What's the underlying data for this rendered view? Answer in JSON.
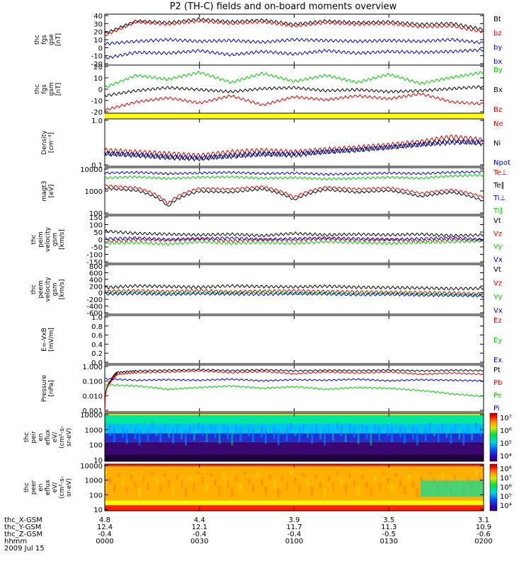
{
  "title": "P2 (TH-C) fields and on-board moments overview",
  "colors": {
    "black": "#000000",
    "red": "#e00000",
    "blue": "#0000d0",
    "green": "#00d000",
    "yellow": "#ffff00"
  },
  "colorbars": {
    "peir": {
      "labels": [
        "10⁷",
        "10⁶",
        "10⁵",
        "10⁴"
      ]
    },
    "peer": {
      "labels": [
        "10⁸",
        "10⁷",
        "10⁶",
        "10⁵",
        "10⁴"
      ]
    }
  },
  "ephemeris": {
    "rows": [
      {
        "label": "thc_X-GSM",
        "values": [
          "4.8",
          "4.4",
          "3.9",
          "3.5",
          "3.1"
        ]
      },
      {
        "label": "thc_Y-GSM",
        "values": [
          "12.4",
          "12.1",
          "11.7",
          "11.3",
          "10.9"
        ]
      },
      {
        "label": "thc_Z-GSM",
        "values": [
          "-0.4",
          "-0.4",
          "-0.4",
          "-0.5",
          "-0.6"
        ]
      },
      {
        "label": "hhmm",
        "values": [
          "0000",
          "0030",
          "0100",
          "0130",
          "0200"
        ]
      }
    ],
    "date": "2009 Jul 15"
  },
  "chart_data": [
    {
      "type": "line",
      "id": "fgs_gse",
      "ylabel_lines": [
        "thc",
        "fgs",
        "gse",
        "[nT]"
      ],
      "ylim": [
        -20,
        40
      ],
      "yticks": [
        "40",
        "30",
        "20",
        "10",
        "0",
        "-10",
        "-20"
      ],
      "series": [
        {
          "name": "Bt",
          "color": "black",
          "x": [
            0,
            10,
            20,
            30,
            40,
            50,
            60,
            70,
            80,
            90,
            100,
            110,
            120
          ],
          "y": [
            17,
            32,
            30,
            34,
            31,
            33,
            28,
            32,
            30,
            31,
            28,
            29,
            22
          ]
        },
        {
          "name": "bz",
          "color": "red",
          "x": [
            0,
            10,
            20,
            30,
            40,
            50,
            60,
            70,
            80,
            90,
            100,
            110,
            120
          ],
          "y": [
            15,
            31,
            28,
            32,
            29,
            31,
            26,
            30,
            28,
            29,
            25,
            26,
            19
          ]
        },
        {
          "name": "by",
          "color": "blue",
          "x": [
            0,
            10,
            20,
            30,
            40,
            50,
            60,
            70,
            80,
            90,
            100,
            110,
            120
          ],
          "y": [
            5,
            8,
            10,
            8,
            9,
            7,
            10,
            9,
            8,
            9,
            8,
            10,
            6
          ]
        },
        {
          "name": "bx",
          "color": "blue",
          "x": [
            0,
            10,
            20,
            30,
            40,
            50,
            60,
            70,
            80,
            90,
            100,
            110,
            120
          ],
          "y": [
            -12,
            -5,
            -6,
            -3,
            -8,
            -4,
            -7,
            -3,
            -6,
            -4,
            -5,
            -4,
            -2
          ]
        }
      ]
    },
    {
      "type": "line",
      "id": "fgs_gsm",
      "ylabel_lines": [
        "thc",
        "fgs",
        "gsm",
        "[nT]"
      ],
      "ylim": [
        -25,
        22
      ],
      "yticks": [
        "20",
        "10",
        "0",
        "-10",
        "-20"
      ],
      "series": [
        {
          "name": "By",
          "color": "green",
          "x": [
            0,
            10,
            20,
            30,
            40,
            50,
            60,
            70,
            80,
            90,
            100,
            110,
            120
          ],
          "y": [
            0,
            12,
            8,
            15,
            5,
            14,
            6,
            12,
            5,
            13,
            4,
            10,
            15
          ]
        },
        {
          "name": "Bx",
          "color": "black",
          "x": [
            0,
            10,
            20,
            30,
            40,
            50,
            60,
            70,
            80,
            90,
            100,
            110,
            120
          ],
          "y": [
            -8,
            -3,
            0,
            -2,
            -4,
            -1,
            0,
            -3,
            -2,
            -4,
            -3,
            -1,
            1
          ]
        },
        {
          "name": "Bz",
          "color": "red",
          "x": [
            0,
            10,
            20,
            30,
            40,
            50,
            60,
            70,
            80,
            90,
            100,
            110,
            120
          ],
          "y": [
            -22,
            -14,
            -10,
            -15,
            -8,
            -17,
            -9,
            -12,
            -8,
            -11,
            -6,
            -14,
            -16
          ]
        }
      ]
    },
    {
      "type": "line",
      "id": "density",
      "scale": "log",
      "ylabel_lines": [
        "Density",
        "[cm⁻³]"
      ],
      "ylim": [
        0.1,
        1.3
      ],
      "yticks": [
        "1.0",
        "0.1"
      ],
      "series": [
        {
          "name": "Ne",
          "color": "red",
          "x": [
            0,
            10,
            20,
            30,
            40,
            50,
            60,
            70,
            80,
            90,
            100,
            110,
            120
          ],
          "y": [
            0.24,
            0.22,
            0.2,
            0.18,
            0.22,
            0.24,
            0.22,
            0.25,
            0.28,
            0.32,
            0.38,
            0.5,
            0.42
          ]
        },
        {
          "name": "Ni",
          "color": "black",
          "x": [
            0,
            10,
            20,
            30,
            40,
            50,
            60,
            70,
            80,
            90,
            100,
            110,
            120
          ],
          "y": [
            0.2,
            0.18,
            0.16,
            0.15,
            0.18,
            0.2,
            0.18,
            0.22,
            0.24,
            0.28,
            0.33,
            0.4,
            0.34
          ]
        },
        {
          "name": "Npot",
          "color": "blue",
          "x": [
            0,
            10,
            20,
            30,
            40,
            50,
            60,
            70,
            80,
            90,
            100,
            110,
            120
          ],
          "y": [
            0.2,
            0.19,
            0.17,
            0.16,
            0.17,
            0.19,
            0.2,
            0.22,
            0.25,
            0.28,
            0.32,
            0.36,
            0.38
          ]
        }
      ]
    },
    {
      "type": "line",
      "id": "temperature",
      "scale": "log",
      "ylabel_lines": [
        "magt3",
        "[eV]"
      ],
      "ylim": [
        100,
        13000
      ],
      "yticks": [
        "10000",
        "1000",
        "100"
      ],
      "series": [
        {
          "name": "Te⊥",
          "color": "red",
          "x": [
            0,
            10,
            20,
            30,
            40,
            50,
            60,
            70,
            80,
            90,
            100,
            110,
            120
          ],
          "y": [
            2000,
            1600,
            300,
            1500,
            1400,
            1800,
            600,
            1700,
            1400,
            1600,
            900,
            1300,
            600
          ]
        },
        {
          "name": "Te∥",
          "color": "black",
          "x": [
            0,
            10,
            20,
            30,
            40,
            50,
            60,
            70,
            80,
            90,
            100,
            110,
            120
          ],
          "y": [
            1500,
            1200,
            220,
            1100,
            1000,
            1400,
            450,
            1300,
            1000,
            1200,
            650,
            1000,
            400
          ]
        },
        {
          "name": "Ti⊥",
          "color": "blue",
          "x": [
            0,
            10,
            20,
            30,
            40,
            50,
            60,
            70,
            80,
            90,
            100,
            110,
            120
          ],
          "y": [
            7500,
            8000,
            7000,
            7500,
            8000,
            7000,
            7500,
            6500,
            7000,
            7500,
            7000,
            8000,
            8500
          ]
        },
        {
          "name": "Ti∥",
          "color": "green",
          "x": [
            0,
            10,
            20,
            30,
            40,
            50,
            60,
            70,
            80,
            90,
            100,
            110,
            120
          ],
          "y": [
            4500,
            5000,
            4200,
            4800,
            5000,
            4300,
            4600,
            4000,
            4300,
            4800,
            4300,
            5500,
            6000
          ]
        }
      ]
    },
    {
      "type": "line",
      "id": "peim_velocity",
      "ylabel_lines": [
        "thc",
        "peim",
        "velocity",
        "gsm",
        "[km/s]"
      ],
      "ylim": [
        -150,
        160
      ],
      "yticks": [
        "150",
        "100",
        "50",
        "0",
        "-50",
        "-100",
        "-150"
      ],
      "series": [
        {
          "name": "Vt",
          "color": "black",
          "x": [
            0,
            10,
            20,
            30,
            40,
            50,
            60,
            70,
            80,
            90,
            100,
            110,
            120
          ],
          "y": [
            60,
            45,
            40,
            35,
            40,
            30,
            45,
            35,
            40,
            35,
            40,
            30,
            35
          ]
        },
        {
          "name": "Vz",
          "color": "red",
          "x": [
            0,
            10,
            20,
            30,
            40,
            50,
            60,
            70,
            80,
            90,
            100,
            110,
            120
          ],
          "y": [
            -10,
            5,
            0,
            10,
            -5,
            5,
            0,
            10,
            0,
            5,
            -5,
            5,
            0
          ]
        },
        {
          "name": "Vy",
          "color": "green",
          "x": [
            0,
            10,
            20,
            30,
            40,
            50,
            60,
            70,
            80,
            90,
            100,
            110,
            120
          ],
          "y": [
            -20,
            -15,
            -25,
            -10,
            -20,
            -15,
            -20,
            -10,
            -15,
            -20,
            -15,
            -10,
            -5
          ]
        },
        {
          "name": "Vx",
          "color": "blue",
          "x": [
            0,
            10,
            20,
            30,
            40,
            50,
            60,
            70,
            80,
            90,
            100,
            110,
            120
          ],
          "y": [
            10,
            15,
            5,
            10,
            15,
            5,
            10,
            15,
            10,
            5,
            10,
            15,
            5
          ]
        }
      ]
    },
    {
      "type": "line",
      "id": "peem_velocity",
      "ylabel_lines": [
        "thc",
        "peem",
        "velocity",
        "gsm",
        "[km/s]"
      ],
      "ylim": [
        -600,
        800
      ],
      "yticks": [
        "800",
        "600",
        "400",
        "200",
        "0",
        "-200",
        "-400",
        "-600"
      ],
      "series": [
        {
          "name": "Vt",
          "color": "black",
          "x": [
            0,
            10,
            20,
            30,
            40,
            50,
            60,
            70,
            80,
            90,
            100,
            110,
            120
          ],
          "y": [
            150,
            200,
            180,
            160,
            200,
            180,
            170,
            190,
            160,
            150,
            140,
            120,
            130
          ]
        },
        {
          "name": "Vz",
          "color": "red",
          "x": [
            0,
            10,
            20,
            30,
            40,
            50,
            60,
            70,
            80,
            90,
            100,
            110,
            120
          ],
          "y": [
            50,
            60,
            40,
            70,
            30,
            50,
            60,
            40,
            30,
            20,
            10,
            0,
            -30
          ]
        },
        {
          "name": "Vy",
          "color": "green",
          "x": [
            0,
            10,
            20,
            30,
            40,
            50,
            60,
            70,
            80,
            90,
            100,
            110,
            120
          ],
          "y": [
            0,
            20,
            -10,
            10,
            0,
            20,
            -10,
            0,
            -20,
            -10,
            -30,
            -40,
            -60
          ]
        },
        {
          "name": "Vx",
          "color": "blue",
          "x": [
            0,
            10,
            20,
            30,
            40,
            50,
            60,
            70,
            80,
            90,
            100,
            110,
            120
          ],
          "y": [
            -30,
            -20,
            -40,
            -20,
            -30,
            -40,
            -20,
            -30,
            -50,
            -40,
            -60,
            -70,
            -80
          ]
        }
      ]
    },
    {
      "type": "line",
      "id": "efield",
      "ylabel_lines": [
        "E=-VxB",
        "[mV/m]"
      ],
      "ylim": [
        0,
        1
      ],
      "yticks": [
        "1.0",
        "0.8",
        "0.6",
        "0.4",
        "0.2",
        "0.0"
      ],
      "series": [
        {
          "name": "Ez",
          "color": "red",
          "x": [],
          "y": []
        },
        {
          "name": "Ey",
          "color": "green",
          "x": [],
          "y": []
        },
        {
          "name": "Ex",
          "color": "blue",
          "x": [],
          "y": []
        }
      ]
    },
    {
      "type": "line",
      "id": "pressure",
      "scale": "log",
      "ylabel_lines": [
        "Pressure",
        "[nPa]"
      ],
      "ylim": [
        0.001,
        1.2
      ],
      "yticks": [
        "1.000",
        "0.100",
        "0.010",
        "0.001"
      ],
      "series": [
        {
          "name": "Pt",
          "color": "black",
          "x": [
            0,
            2,
            4,
            10,
            20,
            30,
            40,
            50,
            60,
            70,
            80,
            90,
            100,
            110,
            120
          ],
          "y": [
            0.001,
            0.12,
            0.4,
            0.5,
            0.55,
            0.6,
            0.52,
            0.58,
            0.5,
            0.55,
            0.52,
            0.56,
            0.5,
            0.54,
            0.52
          ]
        },
        {
          "name": "Pb",
          "color": "red",
          "x": [
            0,
            2,
            4,
            10,
            20,
            30,
            40,
            50,
            60,
            70,
            80,
            90,
            100,
            110,
            120
          ],
          "y": [
            0.001,
            0.1,
            0.3,
            0.38,
            0.42,
            0.5,
            0.38,
            0.45,
            0.32,
            0.42,
            0.36,
            0.42,
            0.3,
            0.36,
            0.3
          ]
        },
        {
          "name": "Pe",
          "color": "green",
          "x": [
            0,
            10,
            20,
            30,
            40,
            50,
            60,
            70,
            80,
            90,
            100,
            110,
            120
          ],
          "y": [
            0.06,
            0.05,
            0.03,
            0.04,
            0.05,
            0.035,
            0.045,
            0.03,
            0.04,
            0.035,
            0.025,
            0.015,
            0.01
          ]
        },
        {
          "name": "Pi",
          "color": "blue",
          "x": [
            0,
            10,
            20,
            30,
            40,
            50,
            60,
            70,
            80,
            90,
            100,
            110,
            120
          ],
          "y": [
            0.15,
            0.12,
            0.13,
            0.12,
            0.14,
            0.11,
            0.13,
            0.12,
            0.14,
            0.11,
            0.13,
            0.12,
            0.11
          ]
        }
      ]
    },
    {
      "type": "heatmap",
      "id": "peir",
      "scale": "log",
      "ylabel_lines": [
        "thc",
        "peir",
        "en",
        "eflux",
        "eV/",
        "(cm²-s-",
        "sr-eV)"
      ],
      "yticks": [
        "10000",
        "1000",
        "100",
        "10"
      ]
    },
    {
      "type": "heatmap",
      "id": "peer",
      "scale": "log",
      "ylabel_lines": [
        "thc",
        "peer",
        "en",
        "eflux",
        "eV/",
        "(cm²-s-",
        "sr-eV)"
      ],
      "yticks": [
        "10000",
        "1000",
        "100",
        "10"
      ]
    }
  ]
}
